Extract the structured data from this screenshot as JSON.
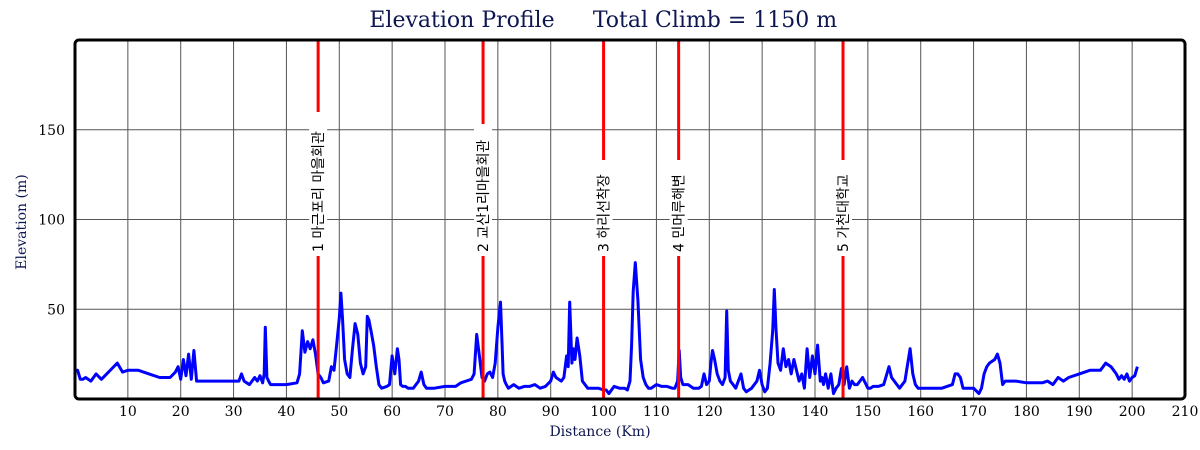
{
  "chart_data": {
    "type": "line",
    "title": "Elevation Profile",
    "subtitle": "Total Climb = 1150 m",
    "xlabel": "Distance (Km)",
    "ylabel": "Elevation (m)",
    "xlim": [
      0,
      210
    ],
    "ylim": [
      0,
      200
    ],
    "xticks": [
      10,
      20,
      30,
      40,
      50,
      60,
      70,
      80,
      90,
      100,
      110,
      120,
      130,
      140,
      150,
      160,
      170,
      180,
      190,
      200,
      210
    ],
    "yticks": [
      50,
      100,
      150
    ],
    "grid": true,
    "colors": {
      "line": "#0000ff",
      "checkpoint": "#ff0000",
      "title": "#0d1650"
    },
    "series": [
      {
        "x": [
          0,
          0.5,
          1,
          1.5,
          2,
          3,
          4,
          5,
          6,
          7,
          8,
          9,
          10,
          12,
          14,
          16,
          18,
          19,
          19.5,
          20,
          20.5,
          21,
          21.5,
          22,
          22.5,
          23,
          24,
          26,
          28,
          30,
          31,
          31.5,
          32,
          33,
          34,
          34.5,
          35,
          35.5,
          35.8,
          36,
          36.3,
          36.8,
          37,
          38,
          40,
          42,
          42.5,
          43,
          43.5,
          44,
          44.5,
          45,
          45.5,
          46,
          46.5,
          47,
          48,
          48.5,
          49,
          49.5,
          50,
          50.3,
          50.6,
          51,
          51.5,
          52,
          52.5,
          53,
          53.5,
          54,
          54.5,
          55,
          55.3,
          55.6,
          56,
          56.5,
          57,
          57.5,
          58,
          59,
          59.5,
          60,
          60.5,
          61,
          61.3,
          61.6,
          62,
          62.5,
          63,
          64,
          65,
          65.5,
          66,
          66.5,
          67,
          68,
          70,
          72,
          73,
          74,
          75,
          75.5,
          76,
          76.5,
          77,
          77.5,
          78,
          78.5,
          79,
          79.5,
          80,
          80.5,
          80.8,
          81,
          81.3,
          81.6,
          82,
          83,
          84,
          85,
          86,
          87,
          88,
          89,
          90,
          90.5,
          91,
          92,
          92.5,
          93,
          93.3,
          93.6,
          94,
          94.3,
          94.6,
          95,
          95.5,
          96,
          97,
          98,
          99,
          100,
          100.5,
          101,
          102,
          103,
          104,
          104.5,
          105,
          105.3,
          105.6,
          106,
          106.5,
          107,
          107.5,
          108,
          108.5,
          109,
          110,
          111,
          112,
          113,
          113.5,
          114,
          114.3,
          114.6,
          115,
          116,
          117,
          118,
          118.5,
          119,
          119.5,
          120,
          120.3,
          120.6,
          121,
          121.5,
          122,
          122.5,
          123,
          123.3,
          123.6,
          124,
          124.5,
          125,
          126,
          126.5,
          127,
          128,
          129,
          129.5,
          130,
          130.5,
          131,
          131.5,
          132,
          132.3,
          132.6,
          133,
          133.5,
          134,
          134.5,
          135,
          135.5,
          136,
          136.5,
          137,
          137.5,
          138,
          138.5,
          139,
          139.5,
          140,
          140.5,
          141,
          141.3,
          141.6,
          142,
          142.5,
          143,
          143.5,
          144,
          144.5,
          145,
          145.5,
          146,
          146.5,
          147,
          147.5,
          148,
          149,
          150,
          150.5,
          151,
          152,
          153,
          154,
          154.5,
          155,
          155.5,
          156,
          157,
          158,
          158.5,
          159,
          159.5,
          160,
          162,
          164,
          166,
          166.5,
          167,
          167.5,
          168,
          169,
          170,
          171,
          171.5,
          172,
          172.5,
          173,
          174,
          174.5,
          175,
          175.5,
          176,
          177,
          178,
          180,
          182,
          183,
          184,
          185,
          186,
          187,
          188,
          190,
          192,
          193,
          194,
          194.5,
          195,
          196,
          197,
          197.5,
          198,
          198.5,
          199,
          199.5,
          200,
          200.5,
          201
        ],
        "values": [
          16,
          16,
          11,
          11,
          12,
          10,
          14,
          11,
          14,
          17,
          20,
          15,
          16,
          16,
          14,
          12,
          12,
          15,
          18,
          11,
          22,
          13,
          25,
          11,
          27,
          10,
          10,
          10,
          10,
          10,
          10,
          14,
          10,
          8,
          12,
          10,
          13,
          9,
          14,
          40,
          12,
          9,
          8,
          8,
          8,
          9,
          14,
          38,
          26,
          32,
          28,
          33,
          25,
          14,
          12,
          9,
          10,
          18,
          16,
          30,
          45,
          59,
          45,
          22,
          14,
          12,
          28,
          42,
          36,
          20,
          14,
          18,
          46,
          44,
          38,
          30,
          18,
          8,
          6,
          7,
          8,
          24,
          14,
          28,
          22,
          8,
          7,
          7,
          6,
          6,
          10,
          15,
          8,
          6,
          6,
          6,
          7,
          7,
          9,
          10,
          11,
          14,
          36,
          24,
          12,
          10,
          14,
          15,
          12,
          20,
          40,
          54,
          30,
          14,
          10,
          8,
          6,
          8,
          6,
          7,
          7,
          8,
          6,
          7,
          10,
          15,
          12,
          10,
          12,
          24,
          18,
          54,
          20,
          28,
          22,
          34,
          24,
          10,
          6,
          6,
          6,
          5,
          5,
          3,
          7,
          6,
          6,
          5,
          10,
          30,
          60,
          76,
          55,
          22,
          12,
          8,
          6,
          6,
          8,
          7,
          7,
          6,
          6,
          10,
          27,
          12,
          8,
          8,
          6,
          6,
          7,
          14,
          8,
          10,
          20,
          27,
          22,
          14,
          10,
          8,
          12,
          49,
          16,
          10,
          8,
          6,
          14,
          6,
          4,
          6,
          10,
          16,
          8,
          4,
          6,
          20,
          38,
          61,
          40,
          20,
          16,
          28,
          18,
          22,
          14,
          22,
          16,
          10,
          14,
          6,
          28,
          12,
          24,
          14,
          30,
          10,
          12,
          8,
          14,
          6,
          14,
          3,
          6,
          8,
          17,
          8,
          18,
          6,
          10,
          8,
          8,
          12,
          6,
          6,
          7,
          7,
          8,
          18,
          12,
          10,
          8,
          6,
          10,
          28,
          14,
          8,
          6,
          6,
          6,
          6,
          8,
          14,
          14,
          12,
          6,
          6,
          6,
          3,
          6,
          14,
          18,
          20,
          22,
          25,
          20,
          8,
          10,
          10,
          10,
          9,
          9,
          9,
          10,
          8,
          12,
          10,
          12,
          14,
          16,
          16,
          16,
          18,
          20,
          18,
          14,
          11,
          13,
          11,
          14,
          10,
          12,
          13,
          18
        ]
      }
    ],
    "checkpoints": [
      {
        "x": 46,
        "label": "1 마근포리 마을회관"
      },
      {
        "x": 77.2,
        "label": "2 교산1리마을회관"
      },
      {
        "x": 100,
        "label": "3 하리선착장"
      },
      {
        "x": 114.2,
        "label": "4 민머루해변"
      },
      {
        "x": 145.3,
        "label": "5 가천대학교"
      }
    ]
  }
}
